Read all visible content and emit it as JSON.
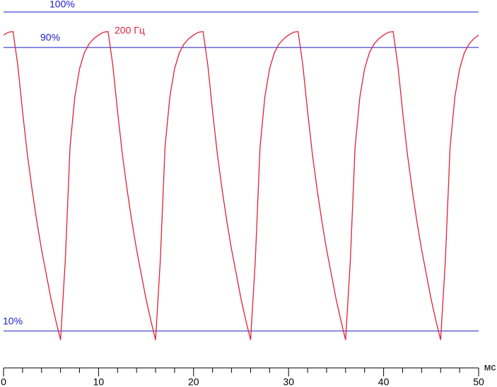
{
  "chart_data": {
    "type": "line",
    "x": [
      0,
      0.5,
      1,
      1.5,
      2,
      2.5,
      3,
      3.5,
      4,
      4.5,
      5,
      5.5,
      6,
      6.5,
      7,
      7.5,
      8,
      8.5,
      9,
      9.5,
      10,
      10.5,
      11,
      11.5,
      12,
      12.5,
      13,
      13.5,
      14,
      14.5,
      15,
      15.5,
      16,
      16.5,
      17,
      17.5,
      18,
      18.5,
      19,
      19.5,
      20,
      20.5,
      21,
      21.5,
      22,
      22.5,
      23,
      23.5,
      24,
      24.5,
      25,
      25.5,
      26,
      26.5,
      27,
      27.5,
      28,
      28.5,
      29,
      29.5,
      30,
      30.5,
      31,
      31.5,
      32,
      32.5,
      33,
      33.5,
      34,
      34.5,
      35,
      35.5,
      36,
      36.5,
      37,
      37.5,
      38,
      38.5,
      39,
      39.5,
      40,
      40.5,
      41,
      41.5,
      42,
      42.5,
      43,
      43.5,
      44,
      44.5,
      45,
      45.5,
      46,
      46.5,
      47,
      47.5,
      48,
      48.5,
      49,
      49.5,
      50
    ],
    "series": [
      {
        "name": "200 Гц",
        "color": "#e0203a",
        "values": [
          93.5,
          94.3,
          94.5,
          85,
          72,
          60,
          50,
          41,
          33,
          26,
          19,
          13,
          7.5,
          30,
          62,
          76,
          84,
          88.5,
          91,
          92.5,
          93.5,
          94.3,
          94.5,
          85,
          72,
          60,
          50,
          41,
          33,
          26,
          19,
          13,
          7.5,
          30,
          62,
          76,
          84,
          88.5,
          91,
          92.5,
          93.5,
          94.3,
          94.5,
          85,
          72,
          60,
          50,
          41,
          33,
          26,
          19,
          13,
          7.5,
          30,
          62,
          76,
          84,
          88.5,
          91,
          92.5,
          93.5,
          94.3,
          94.5,
          85,
          72,
          60,
          50,
          41,
          33,
          26,
          19,
          13,
          7.5,
          30,
          62,
          76,
          84,
          88.5,
          91,
          92.5,
          93.5,
          94.3,
          94.5,
          85,
          72,
          60,
          50,
          41,
          33,
          26,
          19,
          13,
          7.5,
          30,
          62,
          76,
          84,
          88.5,
          91,
          92.5,
          93.5
        ]
      }
    ],
    "reference_lines": [
      {
        "value": 100,
        "label": "100%"
      },
      {
        "value": 90,
        "label": "90%"
      },
      {
        "value": 10,
        "label": "10%"
      }
    ],
    "reference_color": "#1a1ac8",
    "xlabel": "мс",
    "xlim": [
      0,
      50
    ],
    "xticks": [
      0,
      10,
      20,
      30,
      40,
      50
    ],
    "xminorticks": [
      2,
      4,
      6,
      8,
      12,
      14,
      16,
      18,
      22,
      24,
      26,
      28,
      32,
      34,
      36,
      38,
      42,
      44,
      46,
      48
    ],
    "ylim": [
      0,
      103.4
    ]
  }
}
